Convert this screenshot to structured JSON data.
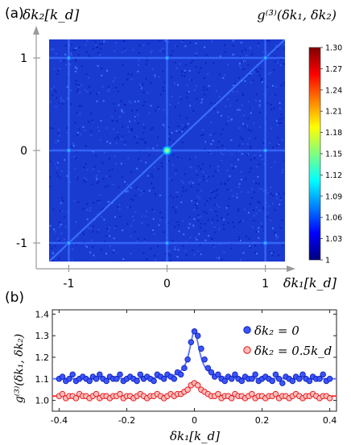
{
  "panel_a": {
    "label": "(a)",
    "y_axis_label": "δk₂[k_d]",
    "x_axis_label": "δk₁[k_d]",
    "map_title": "g⁽³⁾(δk₁, δk₂)",
    "x_ticks": [
      "-1",
      "0",
      "1"
    ],
    "y_ticks": [
      "1",
      "0",
      "-1"
    ]
  },
  "colorbar": {
    "ticks": [
      "1.30",
      "1.27",
      "1.24",
      "1.21",
      "1.18",
      "1.15",
      "1.12",
      "1.09",
      "1.06",
      "1.03",
      "1"
    ],
    "colors": [
      "#00007f",
      "#0000ff",
      "#0080ff",
      "#00ffff",
      "#80ff80",
      "#ffff00",
      "#ff8000",
      "#ff0000",
      "#7f0000"
    ]
  },
  "panel_b": {
    "label": "(b)",
    "y_label": "g⁽³⁾(δk₁, δk₂)",
    "x_label": "δk₁[k_d]",
    "legend": [
      "δk₂ = 0",
      "δk₂ = 0.5k_d"
    ],
    "series_colors": [
      "#2233ff",
      "#ff2222"
    ]
  },
  "chart_data": [
    {
      "type": "heatmap",
      "title": "g⁽³⁾(δk₁, δk₂)",
      "xlabel": "δk₁[k_d]",
      "ylabel": "δk₂[k_d]",
      "xlim": [
        -1.2,
        1.2
      ],
      "ylim": [
        -1.2,
        1.2
      ],
      "zlim": [
        1.0,
        1.3
      ],
      "background_value": 1.02,
      "features": [
        {
          "kind": "vertical_line",
          "x": -1,
          "value": 1.04
        },
        {
          "kind": "vertical_line",
          "x": 0,
          "value": 1.04
        },
        {
          "kind": "vertical_line",
          "x": 1,
          "value": 1.04
        },
        {
          "kind": "horizontal_line",
          "y": -1,
          "value": 1.04
        },
        {
          "kind": "horizontal_line",
          "y": 0,
          "value": 1.04
        },
        {
          "kind": "horizontal_line",
          "y": 1,
          "value": 1.04
        },
        {
          "kind": "diagonal_line",
          "value": 1.05
        },
        {
          "kind": "peak",
          "x": 0,
          "y": 0,
          "value": 1.3
        }
      ]
    },
    {
      "type": "scatter",
      "xlabel": "δk₁[k_d]",
      "ylabel": "g⁽³⁾(δk₁, δk₂)",
      "xlim": [
        -0.42,
        0.42
      ],
      "ylim": [
        0.95,
        1.42
      ],
      "xticks": [
        -0.4,
        -0.2,
        0,
        0.2,
        0.4
      ],
      "yticks": [
        1.0,
        1.1,
        1.2,
        1.3,
        1.4
      ],
      "series": [
        {
          "name": "δk₂ = 0",
          "baseline": 1.1,
          "peak": 1.32,
          "x": [
            -0.4,
            -0.39,
            -0.38,
            -0.37,
            -0.36,
            -0.35,
            -0.34,
            -0.33,
            -0.32,
            -0.31,
            -0.3,
            -0.29,
            -0.28,
            -0.27,
            -0.26,
            -0.25,
            -0.24,
            -0.23,
            -0.22,
            -0.21,
            -0.2,
            -0.19,
            -0.18,
            -0.17,
            -0.16,
            -0.15,
            -0.14,
            -0.13,
            -0.12,
            -0.11,
            -0.1,
            -0.09,
            -0.08,
            -0.07,
            -0.06,
            -0.05,
            -0.04,
            -0.03,
            -0.02,
            -0.01,
            0,
            0.01,
            0.02,
            0.03,
            0.04,
            0.05,
            0.06,
            0.07,
            0.08,
            0.09,
            0.1,
            0.11,
            0.12,
            0.13,
            0.14,
            0.15,
            0.16,
            0.17,
            0.18,
            0.19,
            0.2,
            0.21,
            0.22,
            0.23,
            0.24,
            0.25,
            0.26,
            0.27,
            0.28,
            0.29,
            0.3,
            0.31,
            0.32,
            0.33,
            0.34,
            0.35,
            0.36,
            0.37,
            0.38,
            0.39,
            0.4
          ],
          "y": [
            1.1,
            1.11,
            1.09,
            1.1,
            1.12,
            1.09,
            1.1,
            1.11,
            1.1,
            1.09,
            1.11,
            1.1,
            1.12,
            1.1,
            1.09,
            1.11,
            1.1,
            1.1,
            1.12,
            1.09,
            1.1,
            1.11,
            1.1,
            1.09,
            1.12,
            1.1,
            1.11,
            1.1,
            1.09,
            1.12,
            1.11,
            1.1,
            1.12,
            1.11,
            1.1,
            1.13,
            1.12,
            1.15,
            1.19,
            1.27,
            1.32,
            1.3,
            1.24,
            1.19,
            1.15,
            1.13,
            1.11,
            1.12,
            1.1,
            1.09,
            1.11,
            1.1,
            1.12,
            1.1,
            1.09,
            1.11,
            1.1,
            1.1,
            1.12,
            1.09,
            1.1,
            1.11,
            1.1,
            1.09,
            1.12,
            1.1,
            1.08,
            1.11,
            1.1,
            1.09,
            1.11,
            1.1,
            1.12,
            1.1,
            1.09,
            1.11,
            1.1,
            1.1,
            1.12,
            1.09,
            1.1
          ]
        },
        {
          "name": "δk₂ = 0.5k_d",
          "baseline": 1.02,
          "peak": 1.08,
          "x": [
            -0.4,
            -0.39,
            -0.38,
            -0.37,
            -0.36,
            -0.35,
            -0.34,
            -0.33,
            -0.32,
            -0.31,
            -0.3,
            -0.29,
            -0.28,
            -0.27,
            -0.26,
            -0.25,
            -0.24,
            -0.23,
            -0.22,
            -0.21,
            -0.2,
            -0.19,
            -0.18,
            -0.17,
            -0.16,
            -0.15,
            -0.14,
            -0.13,
            -0.12,
            -0.11,
            -0.1,
            -0.09,
            -0.08,
            -0.07,
            -0.06,
            -0.05,
            -0.04,
            -0.03,
            -0.02,
            -0.01,
            0,
            0.01,
            0.02,
            0.03,
            0.04,
            0.05,
            0.06,
            0.07,
            0.08,
            0.09,
            0.1,
            0.11,
            0.12,
            0.13,
            0.14,
            0.15,
            0.16,
            0.17,
            0.18,
            0.19,
            0.2,
            0.21,
            0.22,
            0.23,
            0.24,
            0.25,
            0.26,
            0.27,
            0.28,
            0.29,
            0.3,
            0.31,
            0.32,
            0.33,
            0.34,
            0.35,
            0.36,
            0.37,
            0.38,
            0.39,
            0.4
          ],
          "y": [
            1.02,
            1.03,
            1.01,
            1.02,
            1.02,
            1.01,
            1.03,
            1.02,
            1.02,
            1.01,
            1.02,
            1.03,
            1.01,
            1.02,
            1.02,
            1.01,
            1.02,
            1.02,
            1.03,
            1.01,
            1.02,
            1.02,
            1.01,
            1.02,
            1.03,
            1.02,
            1.01,
            1.02,
            1.02,
            1.03,
            1.02,
            1.01,
            1.02,
            1.03,
            1.02,
            1.03,
            1.03,
            1.04,
            1.05,
            1.07,
            1.08,
            1.07,
            1.05,
            1.04,
            1.03,
            1.02,
            1.02,
            1.03,
            1.01,
            1.02,
            1.02,
            1.01,
            1.03,
            1.02,
            1.02,
            1.01,
            1.02,
            1.03,
            1.01,
            1.02,
            1.02,
            1.01,
            1.02,
            1.02,
            1.03,
            1.01,
            1.02,
            1.02,
            1.01,
            1.02,
            1.03,
            1.02,
            1.01,
            1.02,
            1.02,
            1.03,
            1.02,
            1.01,
            1.02,
            1.02,
            1.01
          ]
        }
      ]
    }
  ]
}
